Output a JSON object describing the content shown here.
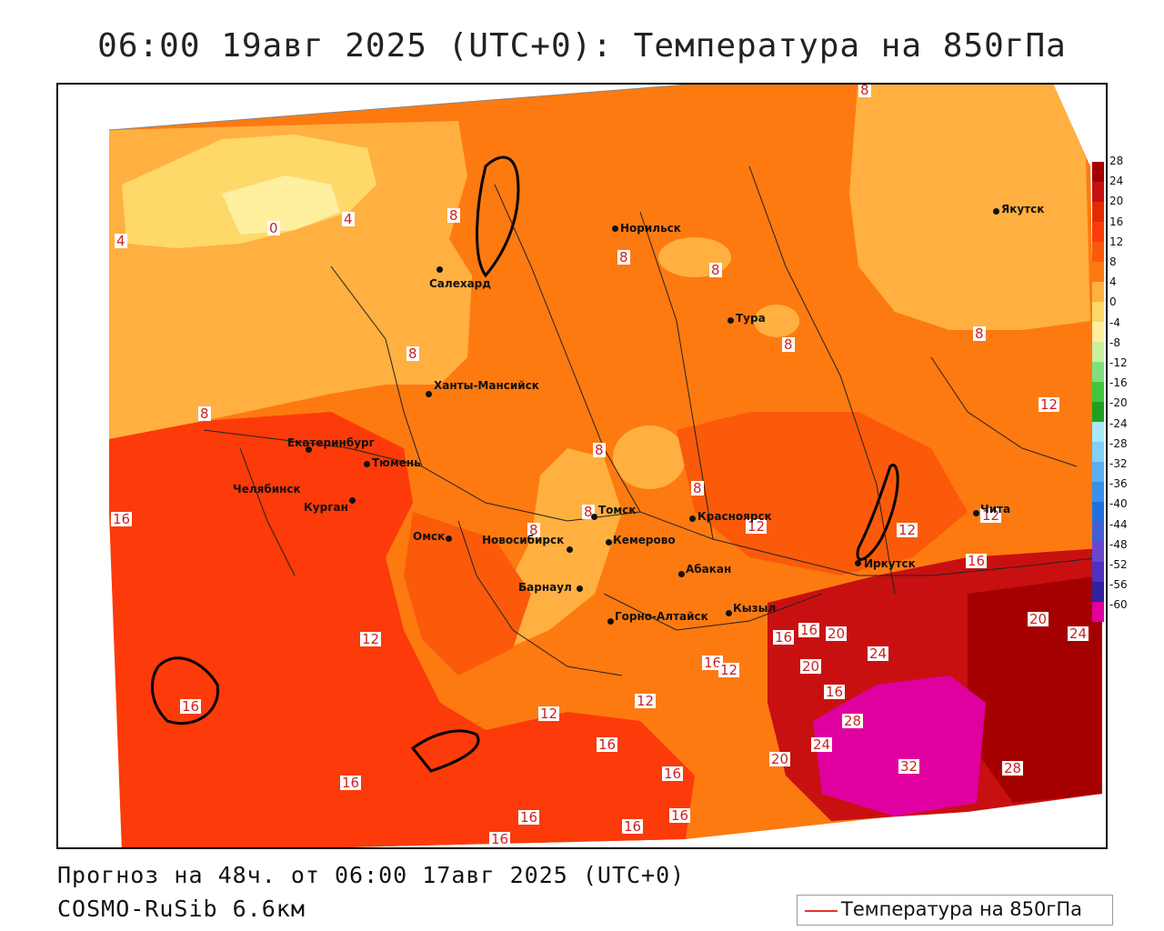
{
  "title": "06:00 19авг 2025 (UTC+0): Температура на 850гПа",
  "forecast_text": "Прогноз на 48ч. от 06:00 17авг 2025 (UTC+0)",
  "model_text": "COSMO-RuSib 6.6км",
  "legend_label": "Температура на 850гПа",
  "colorbar": {
    "ticks": [
      "28",
      "24",
      "20",
      "16",
      "12",
      "8",
      "4",
      "0",
      "-4",
      "-8",
      "-12",
      "-16",
      "-20",
      "-24",
      "-28",
      "-32",
      "-36",
      "-40",
      "-44",
      "-48",
      "-52",
      "-56",
      "-60"
    ],
    "colors": [
      "#a50000",
      "#c81010",
      "#e52a00",
      "#fc3a0a",
      "#fa5a0a",
      "#fd7a10",
      "#ffb040",
      "#ffd86a",
      "#fff0a0",
      "#c8f0a0",
      "#80e080",
      "#40c840",
      "#20a020",
      "#a8e8ff",
      "#80d0f8",
      "#58b0f0",
      "#3890e8",
      "#2070e0",
      "#4060d8",
      "#6848d0",
      "#5030c0",
      "#3020a0",
      "#e000a0"
    ]
  },
  "cities": [
    {
      "name": "Норильск"
    },
    {
      "name": "Якутск"
    },
    {
      "name": "Салехард"
    },
    {
      "name": "Тура"
    },
    {
      "name": "Ханты-Мансийск"
    },
    {
      "name": "Екатеринбург"
    },
    {
      "name": "Тюмень"
    },
    {
      "name": "Челябинск"
    },
    {
      "name": "Курган"
    },
    {
      "name": "Омск"
    },
    {
      "name": "Новосибирск"
    },
    {
      "name": "Томск"
    },
    {
      "name": "Кемерово"
    },
    {
      "name": "Красноярск"
    },
    {
      "name": "Барнаул"
    },
    {
      "name": "Абакан"
    },
    {
      "name": "Горно-Алтайск"
    },
    {
      "name": "Кызыл"
    },
    {
      "name": "Иркутск"
    },
    {
      "name": "Чита"
    }
  ],
  "contour_labels": [
    "8",
    "4",
    "0",
    "4",
    "8",
    "8",
    "8",
    "8",
    "8",
    "8",
    "8",
    "12",
    "8",
    "8",
    "8",
    "8",
    "16",
    "12",
    "12",
    "12",
    "16",
    "12",
    "16",
    "16",
    "20",
    "20",
    "24",
    "16",
    "12",
    "20",
    "16",
    "24",
    "16",
    "12",
    "12",
    "16",
    "16",
    "28",
    "20",
    "24",
    "32",
    "28",
    "16",
    "16",
    "16",
    "16",
    "16",
    "16"
  ]
}
